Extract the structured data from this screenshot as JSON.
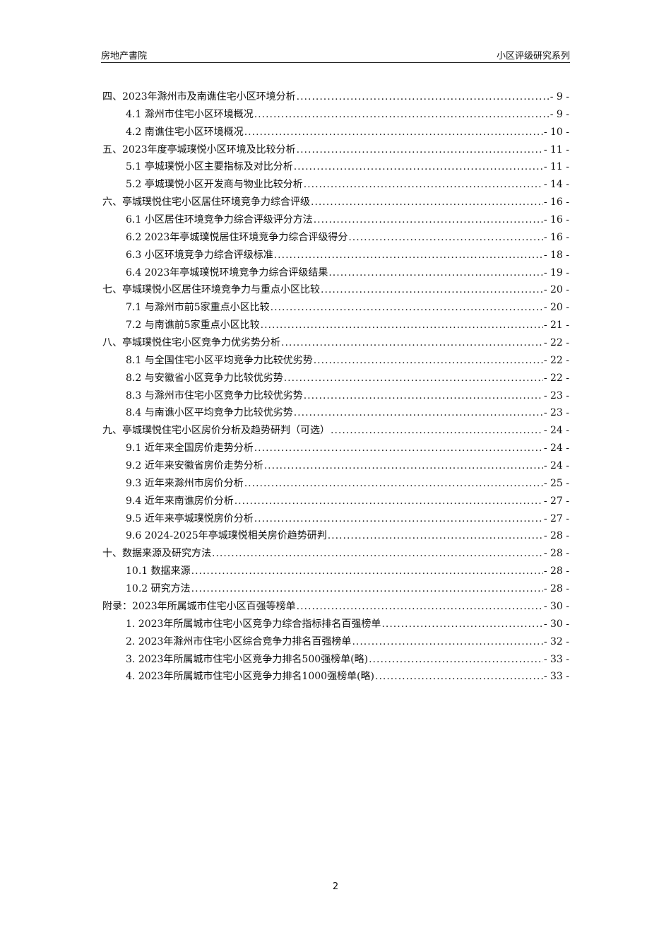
{
  "header": {
    "left": "房地产書院",
    "right": "小区评级研究系列"
  },
  "toc": [
    {
      "level": 1,
      "title": "四、2023年滁州市及南谯住宅小区环境分析",
      "page": "- 9 -"
    },
    {
      "level": 2,
      "title": "4.1 滁州市住宅小区环境概况",
      "page": "- 9 -"
    },
    {
      "level": 2,
      "title": "4.2 南谯住宅小区环境概况",
      "page": "- 10 -"
    },
    {
      "level": 1,
      "title": "五、2023年度亭城璞悦小区环境及比较分析",
      "page": "- 11 -"
    },
    {
      "level": 2,
      "title": "5.1 亭城璞悦小区主要指标及对比分析",
      "page": "- 11 -"
    },
    {
      "level": 2,
      "title": "5.2 亭城璞悦小区开发商与物业比较分析",
      "page": "- 14 -"
    },
    {
      "level": 1,
      "title": "六、亭城璞悦住宅小区居住环境竞争力综合评级",
      "page": "- 16 -"
    },
    {
      "level": 2,
      "title": "6.1 小区居住环境竞争力综合评级评分方法",
      "page": "- 16 -"
    },
    {
      "level": 2,
      "title": "6.2 2023年亭城璞悦居住环境竞争力综合评级得分",
      "page": "- 16 -"
    },
    {
      "level": 2,
      "title": "6.3 小区环境竞争力综合评级标准",
      "page": "- 18 -"
    },
    {
      "level": 2,
      "title": "6.4 2023年亭城璞悦环境竞争力综合评级结果",
      "page": "- 19 -"
    },
    {
      "level": 1,
      "title": "七、亭城璞悦小区居住环境竞争力与重点小区比较",
      "page": "- 20 -"
    },
    {
      "level": 2,
      "title": "7.1 与滁州市前5家重点小区比较",
      "page": "- 20 -"
    },
    {
      "level": 2,
      "title": "7.2 与南谯前5家重点小区比较",
      "page": "- 21 -"
    },
    {
      "level": 1,
      "title": "八、亭城璞悦住宅小区竞争力优劣势分析",
      "page": "- 22 -"
    },
    {
      "level": 2,
      "title": "8.1 与全国住宅小区平均竞争力比较优劣势",
      "page": "- 22 -"
    },
    {
      "level": 2,
      "title": "8.2 与安徽省小区竞争力比较优劣势",
      "page": "- 22 -"
    },
    {
      "level": 2,
      "title": "8.3 与滁州市住宅小区竞争力比较优劣势",
      "page": "- 23 -"
    },
    {
      "level": 2,
      "title": "8.4 与南谯小区平均竞争力比较优劣势",
      "page": "- 23 -"
    },
    {
      "level": 1,
      "title": "九、亭城璞悦住宅小区房价分析及趋势研判（可选）",
      "page": "- 24 -"
    },
    {
      "level": 2,
      "title": "9.1 近年来全国房价走势分析",
      "page": "- 24 -"
    },
    {
      "level": 2,
      "title": "9.2 近年来安徽省房价走势分析",
      "page": "- 24 -"
    },
    {
      "level": 2,
      "title": "9.3 近年来滁州市房价分析",
      "page": "- 25 -"
    },
    {
      "level": 2,
      "title": "9.4 近年来南谯房价分析",
      "page": "- 27 -"
    },
    {
      "level": 2,
      "title": "9.5 近年来亭城璞悦房价分析",
      "page": "- 27 -"
    },
    {
      "level": 2,
      "title": "9.6 2024-2025年亭城璞悦相关房价趋势研判",
      "page": "- 28 -"
    },
    {
      "level": 1,
      "title": "十、数据来源及研究方法",
      "page": "- 28 -"
    },
    {
      "level": 2,
      "title": "10.1 数据来源",
      "page": "- 28 -"
    },
    {
      "level": 2,
      "title": "10.2 研究方法",
      "page": "- 28 -"
    },
    {
      "level": 1,
      "title": "附录：2023年所属城市住宅小区百强等榜单",
      "page": "- 30 -"
    },
    {
      "level": 2,
      "title": "1. 2023年所属城市住宅小区竞争力综合指标排名百强榜单",
      "page": "- 30 -"
    },
    {
      "level": 2,
      "title": "2. 2023年滁州市住宅小区综合竞争力排名百强榜单",
      "page": "- 32 -"
    },
    {
      "level": 2,
      "title": "3. 2023年所属城市住宅小区竞争力排名500强榜单(略)",
      "page": "- 33 -"
    },
    {
      "level": 2,
      "title": "4. 2023年所属城市住宅小区竞争力排名1000强榜单(略)",
      "page": "- 33 -"
    }
  ],
  "footer": {
    "page_number": "2"
  }
}
